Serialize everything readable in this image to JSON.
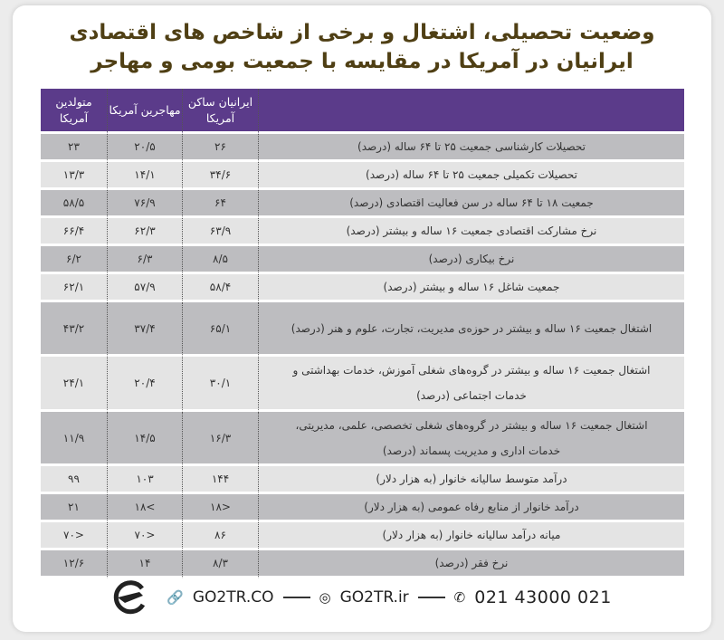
{
  "title": {
    "line1": "وضعیت تحصیلی، اشتغال و برخی از شاخص های اقتصادی",
    "line2": "ایرانیان در آمریکا در مقایسه با جمعیت بومی و مهاجر"
  },
  "table": {
    "headers": [
      "",
      "ایرانیان ساکن آمریکا",
      "مهاجرین آمریکا",
      "متولدین آمریکا"
    ],
    "rows": [
      {
        "metric": "تحصیلات کارشناسی جمعیت ۲۵ تا ۶۴ ساله (درصد)",
        "iranians": "۲۶",
        "immigrants": "۲۰/۵",
        "natives": "۲۳"
      },
      {
        "metric": "تحصیلات تکمیلی جمعیت ۲۵ تا ۶۴ ساله (درصد)",
        "iranians": "۳۴/۶",
        "immigrants": "۱۴/۱",
        "natives": "۱۳/۳"
      },
      {
        "metric": "جمعیت ۱۸ تا ۶۴ ساله در سن فعالیت اقتصادی (درصد)",
        "iranians": "۶۴",
        "immigrants": "۷۶/۹",
        "natives": "۵۸/۵"
      },
      {
        "metric": "نرخ مشارکت اقتصادی جمعیت ۱۶ ساله و بیشتر (درصد)",
        "iranians": "۶۳/۹",
        "immigrants": "۶۲/۳",
        "natives": "۶۶/۴"
      },
      {
        "metric": "نرخ بیکاری (درصد)",
        "iranians": "۸/۵",
        "immigrants": "۶/۳",
        "natives": "۶/۲"
      },
      {
        "metric": "جمعیت شاغل ۱۶ ساله و بیشتر (درصد)",
        "iranians": "۵۸/۴",
        "immigrants": "۵۷/۹",
        "natives": "۶۲/۱"
      },
      {
        "metric": "اشتغال جمعیت ۱۶ ساله و بیشتر در حوزه‌ی مدیریت، تجارت، علوم و هنر (درصد)",
        "iranians": "۶۵/۱",
        "immigrants": "۳۷/۴",
        "natives": "۴۳/۲"
      },
      {
        "metric": "اشتغال جمعیت ۱۶ ساله و بیشتر در گروه‌های شغلی آموزش، خدمات بهداشتی و خدمات اجتماعی (درصد)",
        "iranians": "۳۰/۱",
        "immigrants": "۲۰/۴",
        "natives": "۲۴/۱"
      },
      {
        "metric": "اشتغال جمعیت ۱۶ ساله و بیشتر در گروه‌های شغلی تخصصی، علمی، مدیریتی، خدمات اداری و مدیریت پسماند (درصد)",
        "iranians": "۱۶/۳",
        "immigrants": "۱۴/۵",
        "natives": "۱۱/۹"
      },
      {
        "metric": "درآمد متوسط سالیانه خانوار (به هزار دلار)",
        "iranians": "۱۴۴",
        "immigrants": "۱۰۳",
        "natives": "۹۹"
      },
      {
        "metric": "درآمد خانوار از منابع رفاه عمومی (به هزار دلار)",
        "iranians": "<۱۸",
        "immigrants": ">۱۸",
        "natives": "۲۱"
      },
      {
        "metric": "میانه درآمد سالیانه خانوار (به هزار دلار)",
        "iranians": "۸۶",
        "immigrants": "<۷۰",
        "natives": "<۷۰"
      },
      {
        "metric": "نرخ فقر (درصد)",
        "iranians": "۸/۳",
        "immigrants": "۱۴",
        "natives": "۱۲/۶"
      }
    ]
  },
  "footer": {
    "website": "GO2TR.CO",
    "instagram": "GO2TR.ir",
    "phone": "021 43000 021",
    "icons": [
      "plane-logo-icon",
      "link-icon",
      "instagram-icon",
      "phone-icon"
    ]
  },
  "colors": {
    "header": "#5b3b8a",
    "title": "#4f3f14",
    "row_dark": "#bdbdc0",
    "row_light": "#e4e4e4"
  }
}
